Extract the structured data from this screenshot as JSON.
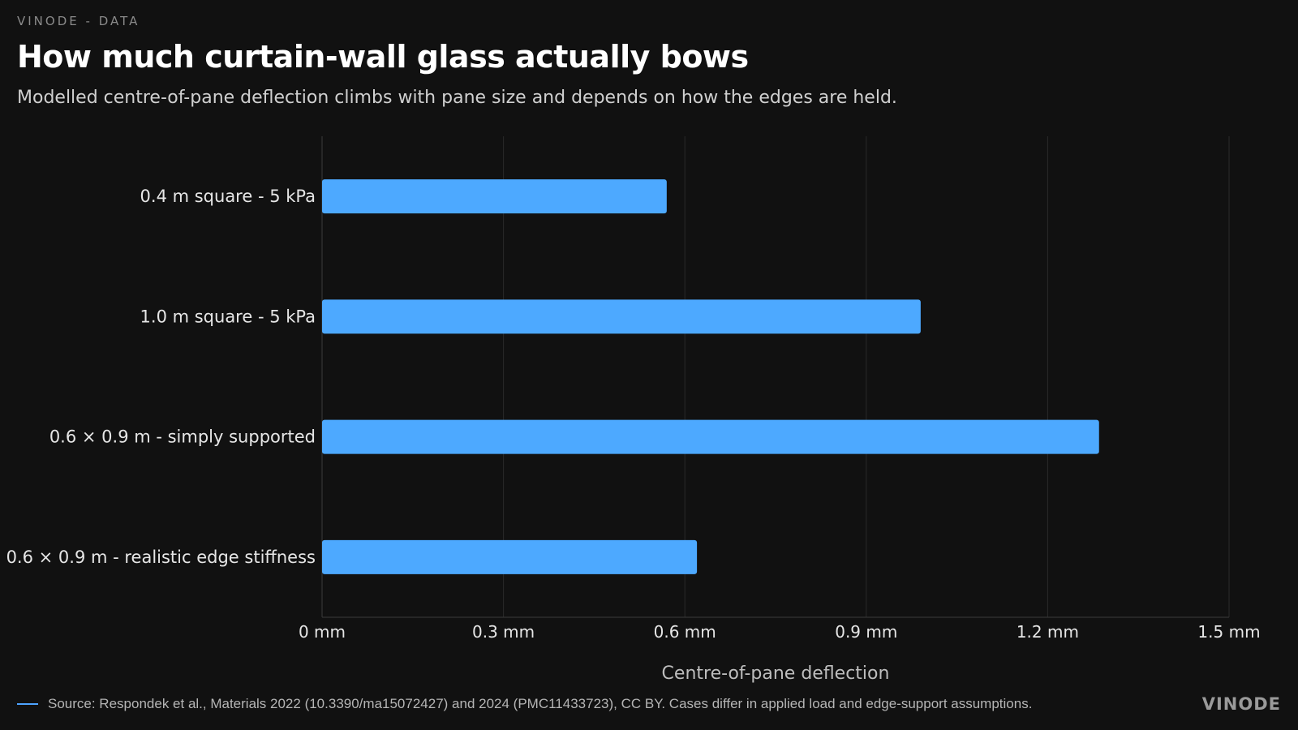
{
  "header": {
    "kicker": "VINODE - DATA",
    "title": "How much curtain-wall glass actually bows",
    "subtitle": "Modelled centre-of-pane deflection climbs with pane size and depends on how the edges are held."
  },
  "chart_data": {
    "type": "bar",
    "orientation": "horizontal",
    "categories": [
      "0.4 m square - 5 kPa",
      "1.0 m square - 5 kPa",
      "0.6 × 0.9 m - simply supported",
      "0.6 × 0.9 m - realistic edge stiffness"
    ],
    "values": [
      0.57,
      0.99,
      1.285,
      0.62
    ],
    "xlabel": "Centre-of-pane deflection",
    "xlim": [
      0,
      1.5
    ],
    "ticks": [
      {
        "value": 0,
        "label": "0  mm"
      },
      {
        "value": 0.3,
        "label": "0.3  mm"
      },
      {
        "value": 0.6,
        "label": "0.6  mm"
      },
      {
        "value": 0.9,
        "label": "0.9  mm"
      },
      {
        "value": 1.2,
        "label": "1.2  mm"
      },
      {
        "value": 1.5,
        "label": "1.5  mm"
      }
    ],
    "grid": true,
    "bar_color": "#4da9ff",
    "grid_color": "#2a2a2a"
  },
  "footer": {
    "source": "Source: Respondek et al., Materials 2022 (10.3390/ma15072427) and 2024 (PMC11433723), CC BY. Cases differ in applied load and edge-support assumptions.",
    "brand": "VINODE",
    "accent_color": "#4da3ff"
  }
}
